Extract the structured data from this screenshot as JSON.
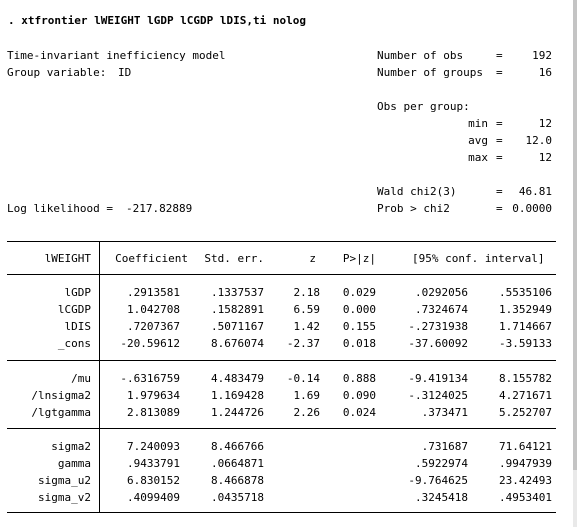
{
  "command": ". xtfrontier lWEIGHT lGDP lCGDP lDIS,ti nolog",
  "model": {
    "title": "Time-invariant inefficiency model",
    "group_variable_label": "Group variable:",
    "group_variable": "ID",
    "log_likelihood_label": "Log likelihood = ",
    "log_likelihood": "-217.82889"
  },
  "stats": {
    "nobs_label": "Number of obs",
    "nobs": "192",
    "ngroups_label": "Number of groups",
    "ngroups": "16",
    "obs_per_group_label": "Obs per group:",
    "min_label": "min",
    "min": "12",
    "avg_label": "avg",
    "avg": "12.0",
    "max_label": "max",
    "max": "12",
    "wald_label": "Wald chi2(3)",
    "wald": "46.81",
    "prob_label": "Prob > chi2",
    "prob": "0.0000",
    "eq": "="
  },
  "table": {
    "headers": {
      "var": "lWEIGHT",
      "coef": "Coefficient",
      "se": "Std. err.",
      "z": "z",
      "p": "P>|z|",
      "ci": "[95% conf. interval]"
    },
    "rows": [
      {
        "var": "lGDP",
        "coef": ".2913581",
        "se": ".1337537",
        "z": "2.18",
        "p": "0.029",
        "lo": ".0292056",
        "hi": ".5535106"
      },
      {
        "var": "lCGDP",
        "coef": "1.042708",
        "se": ".1582891",
        "z": "6.59",
        "p": "0.000",
        "lo": ".7324674",
        "hi": "1.352949"
      },
      {
        "var": "lDIS",
        "coef": ".7207367",
        "se": ".5071167",
        "z": "1.42",
        "p": "0.155",
        "lo": "-.2731938",
        "hi": "1.714667"
      },
      {
        "var": "_cons",
        "coef": "-20.59612",
        "se": "8.676074",
        "z": "-2.37",
        "p": "0.018",
        "lo": "-37.60092",
        "hi": "-3.59133"
      },
      {
        "var": "/mu",
        "coef": "-.6316759",
        "se": "4.483479",
        "z": "-0.14",
        "p": "0.888",
        "lo": "-9.419134",
        "hi": "8.155782"
      },
      {
        "var": "/lnsigma2",
        "coef": "1.979634",
        "se": "1.169428",
        "z": "1.69",
        "p": "0.090",
        "lo": "-.3124025",
        "hi": "4.271671"
      },
      {
        "var": "/lgtgamma",
        "coef": "2.813089",
        "se": "1.244726",
        "z": "2.26",
        "p": "0.024",
        "lo": ".373471",
        "hi": "5.252707"
      },
      {
        "var": "sigma2",
        "coef": "7.240093",
        "se": "8.466766",
        "z": "",
        "p": "",
        "lo": ".731687",
        "hi": "71.64121"
      },
      {
        "var": "gamma",
        "coef": ".9433791",
        "se": ".0664871",
        "z": "",
        "p": "",
        "lo": ".5922974",
        "hi": ".9947939"
      },
      {
        "var": "sigma_u2",
        "coef": "6.830152",
        "se": "8.466878",
        "z": "",
        "p": "",
        "lo": "-9.764625",
        "hi": "23.42493"
      },
      {
        "var": "sigma_v2",
        "coef": ".4099409",
        "se": ".0435718",
        "z": "",
        "p": "",
        "lo": ".3245418",
        "hi": ".4953401"
      }
    ]
  }
}
